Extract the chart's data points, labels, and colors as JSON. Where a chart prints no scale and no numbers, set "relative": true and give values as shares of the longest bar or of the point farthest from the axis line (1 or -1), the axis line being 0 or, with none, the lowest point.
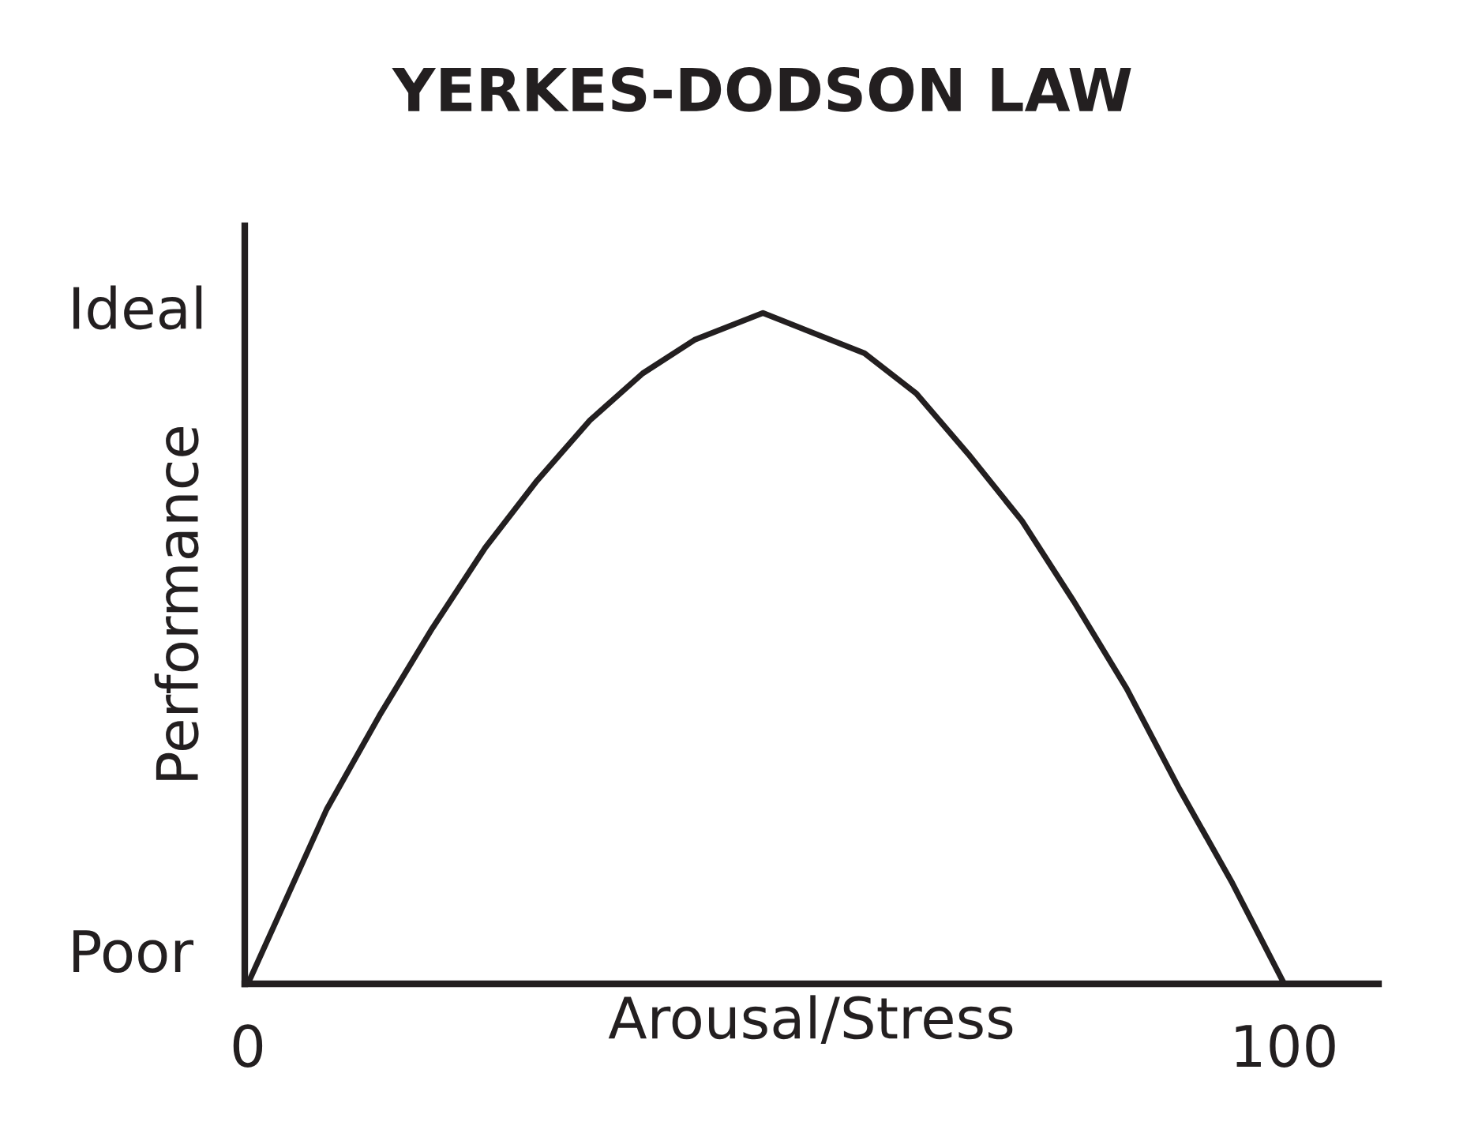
{
  "chart_data": {
    "type": "line",
    "title": "YERKES-DODSON LAW",
    "xlabel": "Arousal/Stress",
    "ylabel": "Performance",
    "relative": true,
    "x": [
      0,
      7.6,
      12.7,
      17.8,
      22.9,
      27.9,
      33.0,
      38.1,
      43.1,
      49.7,
      59.5,
      64.5,
      69.5,
      74.7,
      79.7,
      84.8,
      89.9,
      95.0,
      100
    ],
    "series": [
      {
        "color": "#231f20",
        "values": [
          0,
          0.26,
          0.4,
          0.53,
          0.65,
          0.75,
          0.84,
          0.91,
          0.96,
          1.0,
          0.94,
          0.88,
          0.79,
          0.69,
          0.57,
          0.44,
          0.29,
          0.15,
          0
        ]
      }
    ],
    "xlim": [
      -0.3,
      109.1
    ],
    "xticks": [
      0,
      100
    ],
    "annotations": [
      "Ideal",
      "Poor"
    ],
    "grid": false,
    "legend": false,
    "marker": "none",
    "line_style": "solid"
  }
}
